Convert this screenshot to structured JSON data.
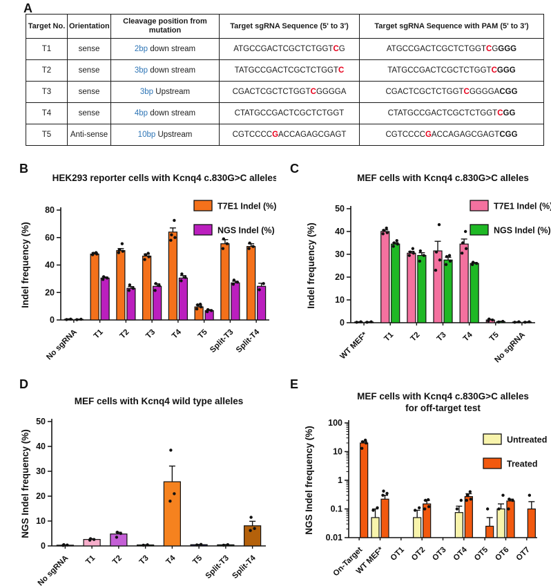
{
  "panels": {
    "A": "A",
    "B": "B",
    "C": "C",
    "D": "D",
    "E": "E"
  },
  "table": {
    "headers": [
      "Target No.",
      "Orientation",
      "Cleavage position from mutation",
      "Target sgRNA Sequence  (5' to 3')",
      "Target sgRNA Sequence with PAM  (5' to 3')"
    ],
    "accent_blue": "#2e75b6",
    "accent_red": "#e8001c",
    "rows": [
      {
        "target": "T1",
        "orientation": "sense",
        "cleavage_blue": "2bp",
        "cleavage_rest": " down stream",
        "seq": [
          {
            "t": "ATGCCGACTCGCTCTGGT"
          },
          {
            "t": "C",
            "r": 1
          },
          {
            "t": "G"
          }
        ],
        "seq_pam": [
          {
            "t": "ATGCCGACTCGCTCTGGT"
          },
          {
            "t": "C",
            "r": 1
          },
          {
            "t": "G"
          },
          {
            "t": "GGG",
            "b": 1
          }
        ]
      },
      {
        "target": "T2",
        "orientation": "sense",
        "cleavage_blue": "3bp",
        "cleavage_rest": " down stream",
        "seq": [
          {
            "t": "TATGCCGACTCGCTCTGGT"
          },
          {
            "t": "C",
            "r": 1
          }
        ],
        "seq_pam": [
          {
            "t": "TATGCCGACTCGCTCTGGT"
          },
          {
            "t": "C",
            "r": 1
          },
          {
            "t": "GGG",
            "b": 1
          }
        ]
      },
      {
        "target": "T3",
        "orientation": "sense",
        "cleavage_blue": "3bp",
        "cleavage_rest": " Upstream",
        "seq": [
          {
            "t": "CGACTCGCTCTGGT"
          },
          {
            "t": "C",
            "r": 1
          },
          {
            "t": "GGGGA"
          }
        ],
        "seq_pam": [
          {
            "t": "CGACTCGCTCTGGT"
          },
          {
            "t": "C",
            "r": 1
          },
          {
            "t": "GGGGA"
          },
          {
            "t": "CGG",
            "b": 1
          }
        ]
      },
      {
        "target": "T4",
        "orientation": "sense",
        "cleavage_blue": "4bp",
        "cleavage_rest": " down stream",
        "seq": [
          {
            "t": "CTATGCCGACTCGCTCTGGT"
          }
        ],
        "seq_pam": [
          {
            "t": "CTATGCCGACTCGCTCTGGT"
          },
          {
            "t": "C",
            "r": 1
          },
          {
            "t": "GG",
            "b": 1
          }
        ]
      },
      {
        "target": "T5",
        "orientation": "Anti-sense",
        "cleavage_blue": "10bp",
        "cleavage_rest": " Upstream",
        "seq": [
          {
            "t": "CGTCCCC"
          },
          {
            "t": "G",
            "r": 1
          },
          {
            "t": "ACCAGAGCGAGT"
          }
        ],
        "seq_pam": [
          {
            "t": "CGTCCCC"
          },
          {
            "t": "G",
            "r": 1
          },
          {
            "t": "ACCAGAGCGAGT"
          },
          {
            "t": "CGG",
            "b": 1
          }
        ]
      }
    ]
  },
  "chart_data": [
    {
      "id": "B",
      "type": "bar",
      "scale": "linear",
      "title_lines": [
        "HEK293 reporter cells with Kcnq4 c.830G>C alleles"
      ],
      "ylabel": "Indel frequency (%)",
      "ylim": [
        0,
        80
      ],
      "yticks": [
        0,
        20,
        40,
        60,
        80
      ],
      "ytick_labels": [
        "0",
        "20",
        "40",
        "60",
        "80"
      ],
      "grid": false,
      "legend_position": "top-right",
      "categories": [
        "No sgRNA",
        "T1",
        "T2",
        "T3",
        "T4",
        "T5",
        "Split-T3",
        "Split-T4"
      ],
      "series": [
        {
          "name": "T7E1 Indel (%)",
          "color": "#F4711B",
          "values": [
            0.5,
            48,
            50.5,
            46.5,
            64,
            9.5,
            55.5,
            53.5
          ],
          "errors": [
            0.3,
            1,
            1.5,
            1.5,
            3,
            1.5,
            3,
            2
          ],
          "dots": [
            [
              0.3,
              0.6
            ],
            [
              47.5,
              48,
              48.5,
              49
            ],
            [
              49,
              50,
              51,
              55.5
            ],
            [
              44,
              46,
              47.5,
              48.5
            ],
            [
              58,
              60,
              62,
              72.5
            ],
            [
              8,
              9.5,
              11,
              11.5
            ],
            [
              52,
              55.5,
              59
            ],
            [
              52,
              53.5,
              56
            ]
          ]
        },
        {
          "name": "NGS Indel (%)",
          "color": "#BB1FBE",
          "values": [
            0.4,
            30.5,
            23,
            24.5,
            30.5,
            6.8,
            27,
            24.5
          ],
          "errors": [
            0.2,
            0.8,
            1.3,
            1.8,
            1.8,
            0.7,
            1.2,
            2.2
          ],
          "dots": [
            [
              0.2,
              0.5
            ],
            [
              29.5,
              30.5,
              31.5
            ],
            [
              21.5,
              23,
              25.5
            ],
            [
              21.5,
              25,
              26.5
            ],
            [
              28.5,
              31,
              33.5
            ],
            [
              6,
              6.8,
              7.5
            ],
            [
              26,
              27.5,
              29
            ],
            [
              22,
              26.5
            ]
          ]
        }
      ]
    },
    {
      "id": "C",
      "type": "bar",
      "scale": "linear",
      "title_lines": [
        "MEF cells with Kcnq4 c.830G>C alleles"
      ],
      "ylabel": "Indel frequency (%)",
      "ylim": [
        0,
        50
      ],
      "yticks": [
        0,
        10,
        20,
        30,
        40,
        50
      ],
      "ytick_labels": [
        "0",
        "10",
        "20",
        "30",
        "40",
        "50"
      ],
      "grid": false,
      "legend_position": "top-right",
      "categories": [
        "WT MEF*",
        "T1",
        "T2",
        "T3",
        "T4",
        "T5",
        "No sgRNA"
      ],
      "series": [
        {
          "name": "T7E1 Indel (%)",
          "color": "#F4719F",
          "values": [
            0.3,
            40,
            30.5,
            31.5,
            34.5,
            1.2,
            0.3
          ],
          "errors": [
            0.1,
            0.7,
            0.8,
            4.2,
            2.2,
            0.3,
            0.1
          ],
          "dots": [
            [
              0.2,
              0.4
            ],
            [
              39,
              39.5,
              40.5,
              41.5
            ],
            [
              29.5,
              30.5,
              31,
              32.5
            ],
            [
              23,
              27.5,
              31,
              43
            ],
            [
              30.5,
              32.5,
              35,
              40
            ],
            [
              0.8,
              1.2,
              1.6
            ],
            [
              0.2,
              0.4
            ]
          ]
        },
        {
          "name": "NGS Indel (%)",
          "color": "#1FB825",
          "values": [
            0.3,
            34.5,
            29.5,
            27.5,
            26,
            0.5,
            0.3
          ],
          "errors": [
            0.1,
            0.6,
            1.2,
            1.2,
            0.4,
            0.15,
            0.1
          ],
          "dots": [
            [
              0.2,
              0.4
            ],
            [
              33.5,
              34.5,
              35,
              36
            ],
            [
              27,
              29.5,
              31.5
            ],
            [
              25.5,
              27,
              29,
              29.5
            ],
            [
              25.5,
              26,
              26.5
            ],
            [
              0.3,
              0.6
            ],
            [
              0.2,
              0.4
            ]
          ]
        }
      ]
    },
    {
      "id": "D",
      "type": "bar",
      "scale": "linear",
      "title_lines": [
        "MEF cells with Kcnq4 wild type alleles"
      ],
      "ylabel": "NGS Indel frequency (%)",
      "ylim": [
        0,
        50
      ],
      "yticks": [
        0,
        10,
        20,
        30,
        40,
        50
      ],
      "ytick_labels": [
        "0",
        "10",
        "20",
        "30",
        "40",
        "50"
      ],
      "grid": false,
      "legend_position": "none",
      "categories": [
        "No sgRNA",
        "T1",
        "T2",
        "T3",
        "T4",
        "T5",
        "Split-T3",
        "Split-T4"
      ],
      "series": [
        {
          "name": "NGS Indel (%)",
          "colors": [
            "#23234F",
            "#F7AECB",
            "#C45FD6",
            "#20421C",
            "#F5821F",
            "#1B1B52",
            "#1C3A24",
            "#B4610B"
          ],
          "values": [
            0.3,
            2.6,
            4.8,
            0.4,
            25.8,
            0.5,
            0.45,
            8.1
          ],
          "errors": [
            0.1,
            0.3,
            0.7,
            0.1,
            6.3,
            0.1,
            0.1,
            1.8
          ],
          "dots": [
            [
              0.2,
              0.35,
              0.5
            ],
            [
              2.3,
              2.6,
              2.9
            ],
            [
              3.5,
              5,
              5.5
            ],
            [
              0.3,
              0.45
            ],
            [
              18,
              21,
              38.5
            ],
            [
              0.4,
              0.6
            ],
            [
              0.3,
              0.5
            ],
            [
              6.2,
              7,
              11.5
            ]
          ]
        }
      ]
    },
    {
      "id": "E",
      "type": "bar",
      "scale": "log",
      "title_lines": [
        "MEF cells with Kcnq4 c.830G>C alleles",
        "for off-target test"
      ],
      "ylabel": "NGS Indel frequency (%)",
      "ylim": [
        0.01,
        100
      ],
      "yticks": [
        0.01,
        0.1,
        1,
        10,
        100
      ],
      "ytick_labels": [
        "0.01",
        "0.1",
        "1",
        "10",
        "100"
      ],
      "grid": false,
      "legend_position": "right",
      "categories": [
        "On-Target",
        "WT MEF*",
        "OT1",
        "OT2",
        "OT3",
        "OT4",
        "OT5",
        "OT6",
        "OT7"
      ],
      "series": [
        {
          "name": "Untreated",
          "color": "#F8F4AC",
          "values": [
            null,
            0.05,
            null,
            0.05,
            null,
            0.075,
            null,
            0.1,
            null
          ],
          "errors": [
            null,
            0.05,
            null,
            0.04,
            null,
            0.05,
            null,
            0.05,
            null
          ],
          "dots": [
            [],
            [
              0.09,
              0.11
            ],
            [],
            [
              0.09,
              0.11
            ],
            [],
            [
              0.1,
              0.2
            ],
            [],
            [
              0.1,
              0.3
            ],
            []
          ]
        },
        {
          "name": "Treated",
          "color": "#F2590F",
          "values": [
            20,
            0.22,
            null,
            0.15,
            null,
            0.27,
            0.025,
            0.19,
            0.1
          ],
          "errors": [
            3,
            0.08,
            null,
            0.05,
            null,
            0.07,
            0.025,
            0.03,
            0.08
          ],
          "dots": [
            [
              13,
              20,
              22,
              25
            ],
            [
              0.3,
              0.35,
              0.42
            ],
            [],
            [
              0.1,
              0.12,
              0.2,
              0.21
            ],
            [],
            [
              0.2,
              0.22,
              0.3,
              0.4
            ],
            [
              0.1
            ],
            [
              0.1,
              0.2,
              0.22
            ],
            [
              0.3
            ]
          ]
        }
      ]
    }
  ]
}
